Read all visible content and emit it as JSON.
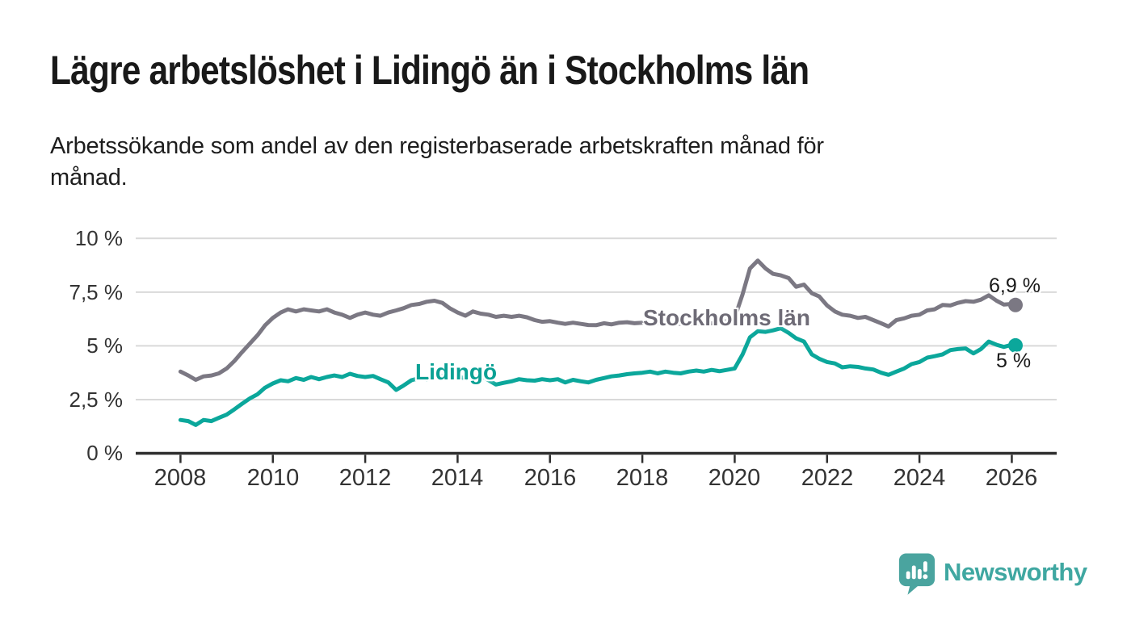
{
  "header": {
    "title": "Lägre arbetslöshet i Lidingö än i Stockholms län",
    "subtitle_lines": [
      "Arbetssökande som andel av den registerbaserade arbetskraften månad för",
      "månad."
    ]
  },
  "footer": {
    "brand": "Newsworthy",
    "brand_color": "#3fa7a1",
    "logo_icon": "speech-bubble-bar-chart-icon",
    "logo_bubble_color": "#4aa49f"
  },
  "chart_data": {
    "type": "line",
    "title": "Lägre arbetslöshet i Lidingö än i Stockholms län",
    "xlabel": "",
    "ylabel": "",
    "grid": true,
    "legend": "inline-labels",
    "xlim": [
      2007.03,
      2026.97
    ],
    "ylim": [
      0,
      10
    ],
    "x_tick_years": [
      2008,
      2010,
      2012,
      2014,
      2016,
      2018,
      2020,
      2022,
      2024,
      2026
    ],
    "x_tick_labels": [
      "2008",
      "2010",
      "2012",
      "2014",
      "2016",
      "2018",
      "2020",
      "2022",
      "2024",
      "2026"
    ],
    "y_tick_values": [
      10,
      7.5,
      5,
      2.5,
      0
    ],
    "y_tick_labels": [
      "10 %",
      "7,5 %",
      "5 %",
      "2,5 %",
      "0 %"
    ],
    "gridline_color": "#d9d9d9",
    "axis_color": "#2e2e2e",
    "series": [
      {
        "name": "Stockholms län",
        "color": "#7b7883",
        "end_label": "6,9 %",
        "end_value": 6.9,
        "points": [
          [
            2008,
            3.8
          ],
          [
            2008.17,
            3.62
          ],
          [
            2008.33,
            3.42
          ],
          [
            2008.5,
            3.58
          ],
          [
            2008.67,
            3.62
          ],
          [
            2008.83,
            3.72
          ],
          [
            2009,
            3.95
          ],
          [
            2009.17,
            4.3
          ],
          [
            2009.33,
            4.7
          ],
          [
            2009.5,
            5.1
          ],
          [
            2009.67,
            5.5
          ],
          [
            2009.83,
            5.95
          ],
          [
            2010,
            6.3
          ],
          [
            2010.17,
            6.55
          ],
          [
            2010.33,
            6.7
          ],
          [
            2010.5,
            6.6
          ],
          [
            2010.67,
            6.7
          ],
          [
            2010.83,
            6.65
          ],
          [
            2011,
            6.6
          ],
          [
            2011.17,
            6.7
          ],
          [
            2011.33,
            6.55
          ],
          [
            2011.5,
            6.45
          ],
          [
            2011.67,
            6.3
          ],
          [
            2011.83,
            6.45
          ],
          [
            2012,
            6.55
          ],
          [
            2012.17,
            6.45
          ],
          [
            2012.33,
            6.4
          ],
          [
            2012.5,
            6.55
          ],
          [
            2012.67,
            6.65
          ],
          [
            2012.83,
            6.75
          ],
          [
            2013,
            6.9
          ],
          [
            2013.17,
            6.95
          ],
          [
            2013.33,
            7.05
          ],
          [
            2013.5,
            7.1
          ],
          [
            2013.67,
            7.0
          ],
          [
            2013.83,
            6.75
          ],
          [
            2014,
            6.55
          ],
          [
            2014.17,
            6.4
          ],
          [
            2014.33,
            6.6
          ],
          [
            2014.5,
            6.5
          ],
          [
            2014.67,
            6.45
          ],
          [
            2014.83,
            6.35
          ],
          [
            2015,
            6.4
          ],
          [
            2015.17,
            6.35
          ],
          [
            2015.33,
            6.4
          ],
          [
            2015.5,
            6.33
          ],
          [
            2015.67,
            6.2
          ],
          [
            2015.83,
            6.12
          ],
          [
            2016,
            6.15
          ],
          [
            2016.17,
            6.08
          ],
          [
            2016.33,
            6.02
          ],
          [
            2016.5,
            6.08
          ],
          [
            2016.67,
            6.02
          ],
          [
            2016.83,
            5.97
          ],
          [
            2017,
            5.96
          ],
          [
            2017.17,
            6.05
          ],
          [
            2017.33,
            6.0
          ],
          [
            2017.5,
            6.08
          ],
          [
            2017.67,
            6.1
          ],
          [
            2017.83,
            6.05
          ],
          [
            2018,
            6.08
          ],
          [
            2018.17,
            6.02
          ],
          [
            2018.33,
            6.05
          ],
          [
            2018.5,
            6.0
          ],
          [
            2018.67,
            6.05
          ],
          [
            2018.83,
            6.02
          ],
          [
            2019,
            6.0
          ],
          [
            2019.17,
            6.05
          ],
          [
            2019.33,
            6.02
          ],
          [
            2019.5,
            6.05
          ],
          [
            2019.67,
            6.1
          ],
          [
            2019.83,
            6.15
          ],
          [
            2020,
            6.3
          ],
          [
            2020.17,
            7.4
          ],
          [
            2020.33,
            8.6
          ],
          [
            2020.5,
            8.97
          ],
          [
            2020.67,
            8.6
          ],
          [
            2020.83,
            8.35
          ],
          [
            2021,
            8.28
          ],
          [
            2021.17,
            8.15
          ],
          [
            2021.33,
            7.75
          ],
          [
            2021.5,
            7.85
          ],
          [
            2021.67,
            7.45
          ],
          [
            2021.83,
            7.3
          ],
          [
            2022,
            6.88
          ],
          [
            2022.17,
            6.6
          ],
          [
            2022.33,
            6.45
          ],
          [
            2022.5,
            6.4
          ],
          [
            2022.67,
            6.3
          ],
          [
            2022.83,
            6.35
          ],
          [
            2023,
            6.2
          ],
          [
            2023.17,
            6.05
          ],
          [
            2023.33,
            5.9
          ],
          [
            2023.5,
            6.2
          ],
          [
            2023.67,
            6.28
          ],
          [
            2023.83,
            6.4
          ],
          [
            2024,
            6.45
          ],
          [
            2024.17,
            6.65
          ],
          [
            2024.33,
            6.7
          ],
          [
            2024.5,
            6.9
          ],
          [
            2024.67,
            6.88
          ],
          [
            2024.83,
            7.0
          ],
          [
            2025,
            7.08
          ],
          [
            2025.17,
            7.05
          ],
          [
            2025.33,
            7.15
          ],
          [
            2025.5,
            7.35
          ],
          [
            2025.67,
            7.1
          ],
          [
            2025.83,
            6.92
          ],
          [
            2026,
            6.95
          ],
          [
            2026.08,
            6.9
          ]
        ]
      },
      {
        "name": "Lidingö",
        "color": "#0ba79b",
        "end_label": "5 %",
        "end_value": 5.0,
        "points": [
          [
            2008,
            1.55
          ],
          [
            2008.17,
            1.5
          ],
          [
            2008.33,
            1.32
          ],
          [
            2008.5,
            1.55
          ],
          [
            2008.67,
            1.5
          ],
          [
            2008.83,
            1.65
          ],
          [
            2009,
            1.8
          ],
          [
            2009.17,
            2.05
          ],
          [
            2009.33,
            2.3
          ],
          [
            2009.5,
            2.55
          ],
          [
            2009.67,
            2.75
          ],
          [
            2009.83,
            3.05
          ],
          [
            2010,
            3.25
          ],
          [
            2010.17,
            3.4
          ],
          [
            2010.33,
            3.35
          ],
          [
            2010.5,
            3.5
          ],
          [
            2010.67,
            3.42
          ],
          [
            2010.83,
            3.55
          ],
          [
            2011,
            3.45
          ],
          [
            2011.17,
            3.55
          ],
          [
            2011.33,
            3.62
          ],
          [
            2011.5,
            3.55
          ],
          [
            2011.67,
            3.7
          ],
          [
            2011.83,
            3.6
          ],
          [
            2012,
            3.55
          ],
          [
            2012.17,
            3.6
          ],
          [
            2012.33,
            3.45
          ],
          [
            2012.5,
            3.3
          ],
          [
            2012.67,
            2.95
          ],
          [
            2012.83,
            3.15
          ],
          [
            2013,
            3.4
          ],
          [
            2013.17,
            3.5
          ],
          [
            2013.33,
            3.45
          ],
          [
            2013.5,
            3.55
          ],
          [
            2013.67,
            3.6
          ],
          [
            2013.83,
            3.52
          ],
          [
            2014,
            3.58
          ],
          [
            2014.17,
            3.48
          ],
          [
            2014.33,
            3.55
          ],
          [
            2014.5,
            3.62
          ],
          [
            2014.67,
            3.4
          ],
          [
            2014.83,
            3.2
          ],
          [
            2015,
            3.28
          ],
          [
            2015.17,
            3.35
          ],
          [
            2015.33,
            3.45
          ],
          [
            2015.5,
            3.4
          ],
          [
            2015.67,
            3.38
          ],
          [
            2015.83,
            3.45
          ],
          [
            2016,
            3.4
          ],
          [
            2016.17,
            3.45
          ],
          [
            2016.33,
            3.3
          ],
          [
            2016.5,
            3.42
          ],
          [
            2016.67,
            3.35
          ],
          [
            2016.83,
            3.3
          ],
          [
            2017,
            3.42
          ],
          [
            2017.17,
            3.5
          ],
          [
            2017.33,
            3.58
          ],
          [
            2017.5,
            3.62
          ],
          [
            2017.67,
            3.68
          ],
          [
            2017.83,
            3.72
          ],
          [
            2018,
            3.75
          ],
          [
            2018.17,
            3.8
          ],
          [
            2018.33,
            3.72
          ],
          [
            2018.5,
            3.8
          ],
          [
            2018.67,
            3.75
          ],
          [
            2018.83,
            3.72
          ],
          [
            2019,
            3.8
          ],
          [
            2019.17,
            3.85
          ],
          [
            2019.33,
            3.8
          ],
          [
            2019.5,
            3.88
          ],
          [
            2019.67,
            3.82
          ],
          [
            2019.83,
            3.88
          ],
          [
            2020,
            3.95
          ],
          [
            2020.17,
            4.6
          ],
          [
            2020.33,
            5.4
          ],
          [
            2020.5,
            5.68
          ],
          [
            2020.67,
            5.65
          ],
          [
            2020.83,
            5.72
          ],
          [
            2021,
            5.82
          ],
          [
            2021.17,
            5.6
          ],
          [
            2021.33,
            5.35
          ],
          [
            2021.5,
            5.2
          ],
          [
            2021.67,
            4.6
          ],
          [
            2021.83,
            4.4
          ],
          [
            2022,
            4.25
          ],
          [
            2022.17,
            4.18
          ],
          [
            2022.33,
            4.0
          ],
          [
            2022.5,
            4.05
          ],
          [
            2022.67,
            4.02
          ],
          [
            2022.83,
            3.95
          ],
          [
            2023,
            3.9
          ],
          [
            2023.17,
            3.75
          ],
          [
            2023.33,
            3.65
          ],
          [
            2023.5,
            3.8
          ],
          [
            2023.67,
            3.95
          ],
          [
            2023.83,
            4.15
          ],
          [
            2024,
            4.25
          ],
          [
            2024.17,
            4.45
          ],
          [
            2024.33,
            4.52
          ],
          [
            2024.5,
            4.6
          ],
          [
            2024.67,
            4.8
          ],
          [
            2024.83,
            4.85
          ],
          [
            2025,
            4.88
          ],
          [
            2025.17,
            4.65
          ],
          [
            2025.33,
            4.85
          ],
          [
            2025.5,
            5.2
          ],
          [
            2025.67,
            5.05
          ],
          [
            2025.83,
            4.95
          ],
          [
            2026,
            5.05
          ],
          [
            2026.08,
            5.02
          ]
        ]
      }
    ]
  }
}
